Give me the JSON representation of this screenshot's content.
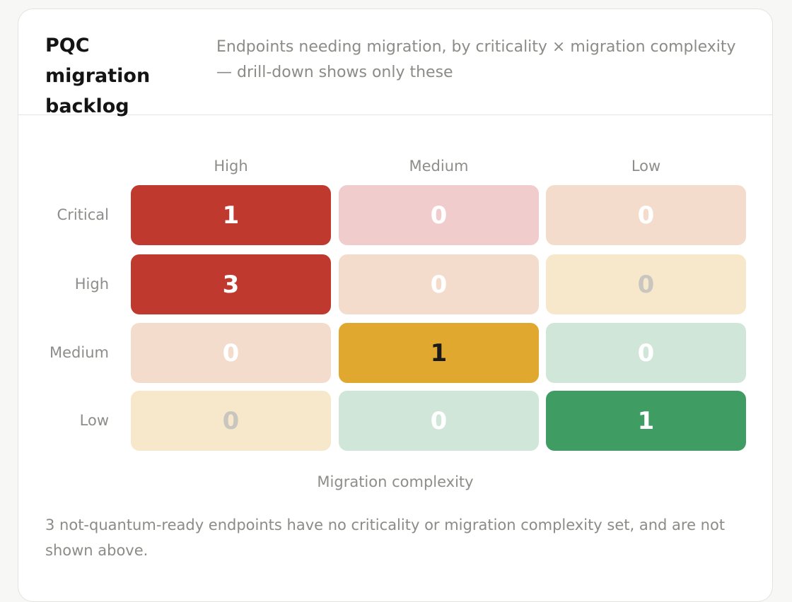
{
  "panel": {
    "title": "PQC migration backlog",
    "subtitle": "Endpoints needing migration, by criticality × migration complexity — drill-down shows only these"
  },
  "matrix": {
    "columns": [
      "High",
      "Medium",
      "Low"
    ],
    "rows": [
      "Critical",
      "High",
      "Medium",
      "Low"
    ],
    "axis_label": "Migration complexity",
    "cells": [
      [
        {
          "value": "1",
          "bg": "#c0392f",
          "fg": "#ffffff"
        },
        {
          "value": "0",
          "bg": "#f0cdcc",
          "fg": "#ffffff"
        },
        {
          "value": "0",
          "bg": "#f4dccc",
          "fg": "#ffffff"
        }
      ],
      [
        {
          "value": "3",
          "bg": "#c0392f",
          "fg": "#ffffff"
        },
        {
          "value": "0",
          "bg": "#f4dccc",
          "fg": "#ffffff"
        },
        {
          "value": "0",
          "bg": "#f7e8cc",
          "fg": "#c8c6bf"
        }
      ],
      [
        {
          "value": "0",
          "bg": "#f4dccc",
          "fg": "#ffffff"
        },
        {
          "value": "1",
          "bg": "#e0a82e",
          "fg": "#1a1a1a"
        },
        {
          "value": "0",
          "bg": "#cfe6d8",
          "fg": "#ffffff"
        }
      ],
      [
        {
          "value": "0",
          "bg": "#f7e8cc",
          "fg": "#c8c6bf"
        },
        {
          "value": "0",
          "bg": "#cfe6d8",
          "fg": "#ffffff"
        },
        {
          "value": "1",
          "bg": "#3f9c63",
          "fg": "#ffffff"
        }
      ]
    ]
  },
  "footnote": "3 not-quantum-ready endpoints have no criticality or migration complexity set, and are not shown above."
}
